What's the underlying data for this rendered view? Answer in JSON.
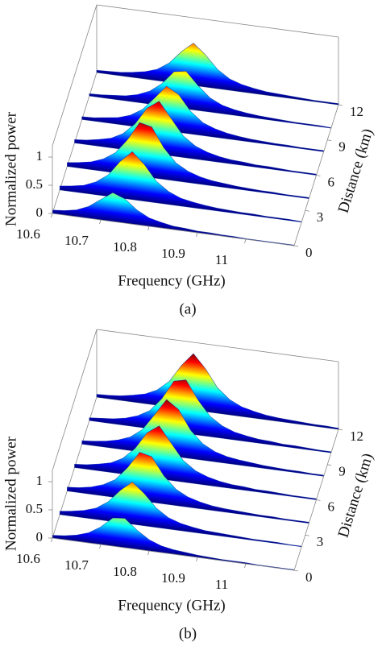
{
  "chart_data": [
    {
      "type": "waterfall3d",
      "caption": "(a)",
      "x_label": "Frequency (GHz)",
      "y_label": "Distance (km)",
      "z_label": "Normalized power",
      "xlim": [
        10.6,
        11.1
      ],
      "ylim": [
        0,
        12
      ],
      "zlim": [
        0,
        1.2
      ],
      "xticks": [
        10.6,
        10.7,
        10.8,
        10.9,
        11
      ],
      "yticks": [
        0,
        3,
        6,
        9,
        12
      ],
      "zticks": [
        0,
        0.5,
        1
      ],
      "grid": false,
      "x": [
        10.6,
        10.625,
        10.65,
        10.675,
        10.7,
        10.725,
        10.75,
        10.775,
        10.8,
        10.825,
        10.85,
        10.875,
        10.9,
        10.925,
        10.95,
        10.975,
        11,
        11.025,
        11.05,
        11.075,
        11.1
      ],
      "series": [
        {
          "distance": 0,
          "values": [
            0.06,
            0.08,
            0.12,
            0.21,
            0.36,
            0.51,
            0.43,
            0.26,
            0.15,
            0.1,
            0.06,
            0.05,
            0.03,
            0.03,
            0.02,
            0.02,
            0.01,
            0.01,
            0.01,
            0.01,
            0.01
          ]
        },
        {
          "distance": 2,
          "values": [
            0.07,
            0.1,
            0.14,
            0.23,
            0.38,
            0.65,
            0.85,
            0.65,
            0.38,
            0.23,
            0.14,
            0.1,
            0.07,
            0.05,
            0.04,
            0.03,
            0.03,
            0.02,
            0.02,
            0.02,
            0.01
          ]
        },
        {
          "distance": 4,
          "values": [
            0.07,
            0.1,
            0.14,
            0.22,
            0.36,
            0.62,
            0.95,
            0.9,
            0.56,
            0.32,
            0.2,
            0.13,
            0.09,
            0.07,
            0.05,
            0.04,
            0.03,
            0.03,
            0.02,
            0.02,
            0.02
          ]
        },
        {
          "distance": 6,
          "values": [
            0.06,
            0.08,
            0.12,
            0.17,
            0.28,
            0.48,
            0.79,
            0.94,
            0.66,
            0.38,
            0.23,
            0.15,
            0.1,
            0.07,
            0.06,
            0.04,
            0.04,
            0.03,
            0.02,
            0.02,
            0.02
          ]
        },
        {
          "distance": 8,
          "values": [
            0.05,
            0.06,
            0.09,
            0.12,
            0.19,
            0.32,
            0.55,
            0.79,
            0.67,
            0.4,
            0.23,
            0.15,
            0.1,
            0.07,
            0.05,
            0.04,
            0.03,
            0.03,
            0.02,
            0.02,
            0.02
          ]
        },
        {
          "distance": 10,
          "values": [
            0.04,
            0.05,
            0.07,
            0.09,
            0.14,
            0.23,
            0.39,
            0.63,
            0.67,
            0.44,
            0.25,
            0.15,
            0.1,
            0.07,
            0.05,
            0.04,
            0.03,
            0.02,
            0.02,
            0.02,
            0.01
          ]
        },
        {
          "distance": 12,
          "values": [
            0.04,
            0.05,
            0.06,
            0.09,
            0.13,
            0.2,
            0.34,
            0.57,
            0.75,
            0.57,
            0.34,
            0.2,
            0.13,
            0.09,
            0.06,
            0.05,
            0.04,
            0.03,
            0.02,
            0.02,
            0.02
          ]
        }
      ]
    },
    {
      "type": "waterfall3d",
      "caption": "(b)",
      "x_label": "Frequency (GHz)",
      "y_label": "Distance (km)",
      "z_label": "Normalized power",
      "xlim": [
        10.6,
        11.1
      ],
      "ylim": [
        0,
        12
      ],
      "zlim": [
        0,
        1.2
      ],
      "xticks": [
        10.6,
        10.7,
        10.8,
        10.9,
        11
      ],
      "yticks": [
        0,
        3,
        6,
        9,
        12
      ],
      "zticks": [
        0,
        0.5,
        1
      ],
      "grid": false,
      "x": [
        10.6,
        10.625,
        10.65,
        10.675,
        10.7,
        10.725,
        10.75,
        10.775,
        10.8,
        10.825,
        10.85,
        10.875,
        10.9,
        10.925,
        10.95,
        10.975,
        11,
        11.025,
        11.05,
        11.075,
        11.1
      ],
      "series": [
        {
          "distance": 0,
          "values": [
            0.05,
            0.07,
            0.11,
            0.18,
            0.31,
            0.5,
            0.52,
            0.34,
            0.2,
            0.12,
            0.08,
            0.06,
            0.04,
            0.03,
            0.02,
            0.02,
            0.02,
            0.01,
            0.01,
            0.01,
            0.01
          ]
        },
        {
          "distance": 2,
          "values": [
            0.06,
            0.09,
            0.13,
            0.2,
            0.34,
            0.57,
            0.75,
            0.57,
            0.34,
            0.2,
            0.13,
            0.09,
            0.06,
            0.05,
            0.04,
            0.03,
            0.02,
            0.02,
            0.02,
            0.01,
            0.01
          ]
        },
        {
          "distance": 4,
          "values": [
            0.07,
            0.09,
            0.13,
            0.2,
            0.32,
            0.56,
            0.86,
            0.81,
            0.5,
            0.29,
            0.18,
            0.12,
            0.08,
            0.06,
            0.05,
            0.04,
            0.03,
            0.03,
            0.02,
            0.02,
            0.02
          ]
        },
        {
          "distance": 6,
          "values": [
            0.06,
            0.08,
            0.12,
            0.17,
            0.28,
            0.48,
            0.79,
            0.94,
            0.66,
            0.38,
            0.23,
            0.15,
            0.1,
            0.07,
            0.06,
            0.04,
            0.04,
            0.03,
            0.02,
            0.02,
            0.02
          ]
        },
        {
          "distance": 8,
          "values": [
            0.06,
            0.08,
            0.11,
            0.16,
            0.24,
            0.4,
            0.69,
            0.99,
            0.84,
            0.5,
            0.29,
            0.18,
            0.12,
            0.09,
            0.07,
            0.05,
            0.04,
            0.03,
            0.03,
            0.02,
            0.02
          ]
        },
        {
          "distance": 10,
          "values": [
            0.05,
            0.07,
            0.09,
            0.13,
            0.2,
            0.32,
            0.56,
            0.9,
            0.95,
            0.62,
            0.36,
            0.22,
            0.14,
            0.1,
            0.07,
            0.06,
            0.04,
            0.04,
            0.03,
            0.02,
            0.02
          ]
        },
        {
          "distance": 12,
          "values": [
            0.05,
            0.06,
            0.08,
            0.12,
            0.17,
            0.27,
            0.45,
            0.76,
            1.0,
            0.76,
            0.45,
            0.27,
            0.17,
            0.12,
            0.08,
            0.06,
            0.05,
            0.04,
            0.03,
            0.03,
            0.02
          ]
        }
      ]
    }
  ]
}
